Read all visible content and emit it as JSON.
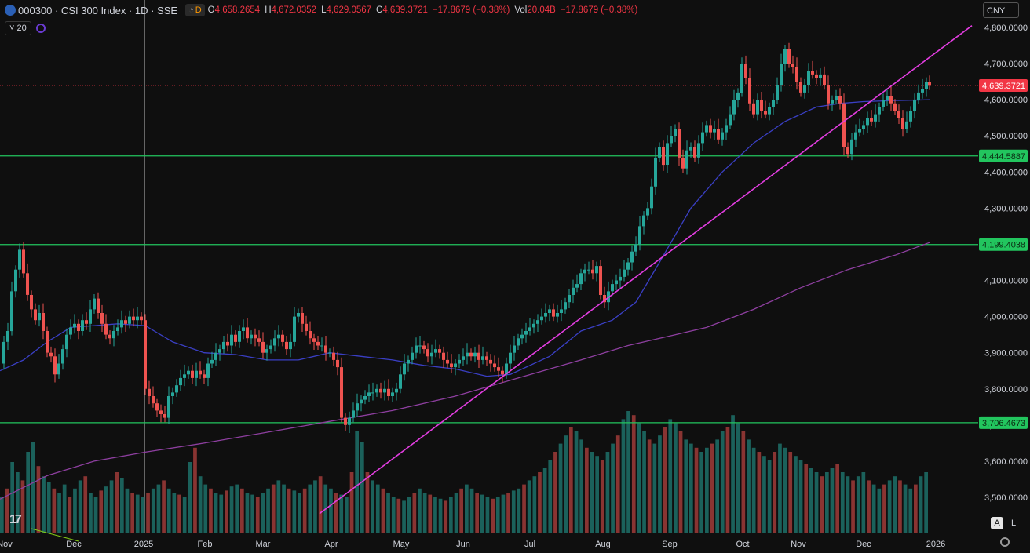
{
  "header": {
    "symbol": "000300",
    "title": "000300 · CSI 300 Index · 1D · SSE",
    "mode_badge": "D",
    "o_label": "O",
    "o_value": "4,658.2654",
    "h_label": "H",
    "h_value": "4,672.0352",
    "l_label": "L",
    "l_value": "4,629.0567",
    "c_label": "C",
    "c_value": "4,639.3721",
    "change": "−17.8679 (−0.38%)",
    "vol_label": "Vol",
    "vol_value": "20.04B",
    "vol_change": "−17.8679 (−0.38%)",
    "ma_length": "20",
    "currency": "CNY"
  },
  "scale_buttons": {
    "auto": "A",
    "log": "L"
  },
  "chart_data": {
    "type": "line",
    "ohlc_description": "daily candlestick price series with volume histogram",
    "y_axis_ticks": [
      "3,500.0000",
      "3,600.0000",
      "3,700.0000",
      "3,800.0000",
      "3,900.0000",
      "4,000.0000",
      "4,100.0000",
      "4,200.0000",
      "4,300.0000",
      "4,400.0000",
      "4,500.0000",
      "4,600.0000",
      "4,700.0000",
      "4,800.0000"
    ],
    "ylim": [
      3450,
      4830
    ],
    "x_axis_ticks": [
      "Nov",
      "Dec",
      "2025",
      "Feb",
      "Mar",
      "Apr",
      "May",
      "Jun",
      "Jul",
      "Aug",
      "Sep",
      "Oct",
      "Nov",
      "Dec",
      "2026"
    ],
    "horizontal_levels": [
      {
        "label": "4,444.5887",
        "value": 4444.5887,
        "color": "#22c55e"
      },
      {
        "label": "4,199.4038",
        "value": 4199.4038,
        "color": "#22c55e"
      },
      {
        "label": "3,706.4673",
        "value": 3706.4673,
        "color": "#22c55e"
      }
    ],
    "last_price": {
      "label": "4,639.3721",
      "value": 4639.3721,
      "color": "#f23645"
    },
    "price_path": [
      [
        0,
        3870
      ],
      [
        5,
        3930
      ],
      [
        10,
        3960
      ],
      [
        15,
        4070
      ],
      [
        20,
        4130
      ],
      [
        25,
        4185
      ],
      [
        30,
        4120
      ],
      [
        35,
        4060
      ],
      [
        40,
        4020
      ],
      [
        45,
        3990
      ],
      [
        50,
        4010
      ],
      [
        55,
        3960
      ],
      [
        60,
        3900
      ],
      [
        65,
        3890
      ],
      [
        70,
        3840
      ],
      [
        75,
        3870
      ],
      [
        80,
        3910
      ],
      [
        85,
        3950
      ],
      [
        90,
        3970
      ],
      [
        95,
        3980
      ],
      [
        100,
        3960
      ],
      [
        105,
        3990
      ],
      [
        110,
        3980
      ],
      [
        115,
        4020
      ],
      [
        120,
        4050
      ],
      [
        125,
        4010
      ],
      [
        130,
        3980
      ],
      [
        135,
        3950
      ],
      [
        140,
        3940
      ],
      [
        145,
        3960
      ],
      [
        150,
        3970
      ],
      [
        155,
        3990
      ],
      [
        160,
        3980
      ],
      [
        165,
        4000
      ],
      [
        170,
        3990
      ],
      [
        175,
        4000
      ],
      [
        180,
        3990
      ],
      [
        185,
        3800
      ],
      [
        190,
        3780
      ],
      [
        195,
        3760
      ],
      [
        200,
        3740
      ],
      [
        205,
        3730
      ],
      [
        210,
        3720
      ],
      [
        215,
        3780
      ],
      [
        220,
        3790
      ],
      [
        225,
        3810
      ],
      [
        230,
        3830
      ],
      [
        235,
        3840
      ],
      [
        240,
        3850
      ],
      [
        245,
        3830
      ],
      [
        250,
        3850
      ],
      [
        255,
        3840
      ],
      [
        260,
        3830
      ],
      [
        265,
        3870
      ],
      [
        270,
        3880
      ],
      [
        275,
        3900
      ],
      [
        280,
        3910
      ],
      [
        285,
        3930
      ],
      [
        290,
        3920
      ],
      [
        295,
        3950
      ],
      [
        300,
        3930
      ],
      [
        305,
        3960
      ],
      [
        310,
        3970
      ],
      [
        315,
        3940
      ],
      [
        320,
        3950
      ],
      [
        325,
        3940
      ],
      [
        330,
        3930
      ],
      [
        335,
        3900
      ],
      [
        340,
        3910
      ],
      [
        345,
        3920
      ],
      [
        350,
        3940
      ],
      [
        355,
        3950
      ],
      [
        360,
        3930
      ],
      [
        365,
        3910
      ],
      [
        370,
        3930
      ],
      [
        375,
        4000
      ],
      [
        380,
        4010
      ],
      [
        385,
        3980
      ],
      [
        390,
        3960
      ],
      [
        395,
        3940
      ],
      [
        400,
        3930
      ],
      [
        405,
        3920
      ],
      [
        410,
        3920
      ],
      [
        415,
        3900
      ],
      [
        420,
        3900
      ],
      [
        425,
        3880
      ],
      [
        430,
        3860
      ],
      [
        435,
        3720
      ],
      [
        440,
        3700
      ],
      [
        445,
        3720
      ],
      [
        450,
        3740
      ],
      [
        455,
        3760
      ],
      [
        460,
        3770
      ],
      [
        465,
        3780
      ],
      [
        470,
        3790
      ],
      [
        475,
        3790
      ],
      [
        480,
        3800
      ],
      [
        485,
        3790
      ],
      [
        490,
        3800
      ],
      [
        495,
        3780
      ],
      [
        500,
        3790
      ],
      [
        505,
        3800
      ],
      [
        510,
        3840
      ],
      [
        515,
        3870
      ],
      [
        520,
        3880
      ],
      [
        525,
        3900
      ],
      [
        530,
        3920
      ],
      [
        535,
        3920
      ],
      [
        540,
        3910
      ],
      [
        545,
        3890
      ],
      [
        550,
        3900
      ],
      [
        555,
        3910
      ],
      [
        560,
        3900
      ],
      [
        565,
        3880
      ],
      [
        570,
        3870
      ],
      [
        575,
        3860
      ],
      [
        580,
        3870
      ],
      [
        585,
        3880
      ],
      [
        590,
        3890
      ],
      [
        595,
        3900
      ],
      [
        600,
        3890
      ],
      [
        605,
        3900
      ],
      [
        610,
        3880
      ],
      [
        615,
        3890
      ],
      [
        620,
        3880
      ],
      [
        625,
        3870
      ],
      [
        630,
        3860
      ],
      [
        635,
        3850
      ],
      [
        640,
        3840
      ],
      [
        645,
        3870
      ],
      [
        650,
        3900
      ],
      [
        655,
        3920
      ],
      [
        660,
        3940
      ],
      [
        665,
        3950
      ],
      [
        670,
        3960
      ],
      [
        675,
        3970
      ],
      [
        680,
        3980
      ],
      [
        685,
        3990
      ],
      [
        690,
        4000
      ],
      [
        695,
        4010
      ],
      [
        700,
        4020
      ],
      [
        705,
        4000
      ],
      [
        710,
        4010
      ],
      [
        715,
        4020
      ],
      [
        720,
        4040
      ],
      [
        725,
        4060
      ],
      [
        730,
        4080
      ],
      [
        735,
        4090
      ],
      [
        740,
        4120
      ],
      [
        745,
        4130
      ],
      [
        750,
        4130
      ],
      [
        755,
        4120
      ],
      [
        760,
        4140
      ],
      [
        765,
        4060
      ],
      [
        770,
        4040
      ],
      [
        775,
        4070
      ],
      [
        780,
        4090
      ],
      [
        785,
        4100
      ],
      [
        790,
        4110
      ],
      [
        795,
        4130
      ],
      [
        800,
        4150
      ],
      [
        805,
        4180
      ],
      [
        810,
        4200
      ],
      [
        815,
        4250
      ],
      [
        820,
        4280
      ],
      [
        825,
        4300
      ],
      [
        830,
        4360
      ],
      [
        835,
        4440
      ],
      [
        840,
        4470
      ],
      [
        845,
        4420
      ],
      [
        850,
        4480
      ],
      [
        855,
        4500
      ],
      [
        860,
        4520
      ],
      [
        865,
        4440
      ],
      [
        870,
        4410
      ],
      [
        875,
        4460
      ],
      [
        880,
        4470
      ],
      [
        885,
        4440
      ],
      [
        890,
        4480
      ],
      [
        895,
        4510
      ],
      [
        900,
        4530
      ],
      [
        905,
        4510
      ],
      [
        910,
        4520
      ],
      [
        915,
        4490
      ],
      [
        920,
        4510
      ],
      [
        925,
        4530
      ],
      [
        930,
        4560
      ],
      [
        935,
        4600
      ],
      [
        940,
        4620
      ],
      [
        945,
        4700
      ],
      [
        950,
        4660
      ],
      [
        955,
        4590
      ],
      [
        960,
        4560
      ],
      [
        965,
        4600
      ],
      [
        970,
        4570
      ],
      [
        975,
        4560
      ],
      [
        980,
        4580
      ],
      [
        985,
        4600
      ],
      [
        990,
        4640
      ],
      [
        995,
        4700
      ],
      [
        1000,
        4740
      ],
      [
        1005,
        4700
      ],
      [
        1010,
        4690
      ],
      [
        1015,
        4650
      ],
      [
        1020,
        4620
      ],
      [
        1025,
        4640
      ],
      [
        1030,
        4680
      ],
      [
        1035,
        4670
      ],
      [
        1040,
        4660
      ],
      [
        1045,
        4670
      ],
      [
        1050,
        4640
      ],
      [
        1055,
        4590
      ],
      [
        1060,
        4600
      ],
      [
        1065,
        4610
      ],
      [
        1070,
        4590
      ],
      [
        1075,
        4470
      ],
      [
        1080,
        4450
      ],
      [
        1085,
        4490
      ],
      [
        1090,
        4510
      ],
      [
        1095,
        4520
      ],
      [
        1100,
        4530
      ],
      [
        1105,
        4550
      ],
      [
        1110,
        4540
      ],
      [
        1115,
        4560
      ],
      [
        1120,
        4580
      ],
      [
        1125,
        4600
      ],
      [
        1130,
        4610
      ],
      [
        1135,
        4590
      ],
      [
        1140,
        4570
      ],
      [
        1145,
        4550
      ],
      [
        1150,
        4520
      ],
      [
        1155,
        4540
      ],
      [
        1160,
        4570
      ],
      [
        1165,
        4600
      ],
      [
        1170,
        4620
      ],
      [
        1175,
        4630
      ],
      [
        1180,
        4650
      ],
      [
        1184,
        4639
      ]
    ],
    "ma_blue": [
      [
        0,
        3850
      ],
      [
        30,
        3880
      ],
      [
        60,
        3930
      ],
      [
        90,
        3970
      ],
      [
        120,
        3975
      ],
      [
        150,
        3980
      ],
      [
        185,
        3975
      ],
      [
        220,
        3930
      ],
      [
        260,
        3900
      ],
      [
        300,
        3895
      ],
      [
        340,
        3880
      ],
      [
        380,
        3880
      ],
      [
        420,
        3900
      ],
      [
        460,
        3890
      ],
      [
        500,
        3880
      ],
      [
        540,
        3865
      ],
      [
        580,
        3855
      ],
      [
        620,
        3835
      ],
      [
        650,
        3840
      ],
      [
        700,
        3890
      ],
      [
        740,
        3960
      ],
      [
        780,
        3990
      ],
      [
        810,
        4040
      ],
      [
        840,
        4150
      ],
      [
        880,
        4300
      ],
      [
        920,
        4400
      ],
      [
        960,
        4480
      ],
      [
        1000,
        4540
      ],
      [
        1040,
        4580
      ],
      [
        1070,
        4590
      ],
      [
        1100,
        4595
      ],
      [
        1140,
        4598
      ],
      [
        1184,
        4600
      ]
    ],
    "ma_purple": [
      [
        0,
        3495
      ],
      [
        60,
        3560
      ],
      [
        120,
        3600
      ],
      [
        185,
        3625
      ],
      [
        260,
        3650
      ],
      [
        340,
        3680
      ],
      [
        420,
        3710
      ],
      [
        500,
        3740
      ],
      [
        580,
        3780
      ],
      [
        660,
        3830
      ],
      [
        740,
        3880
      ],
      [
        800,
        3920
      ],
      [
        860,
        3950
      ],
      [
        900,
        3970
      ],
      [
        960,
        4020
      ],
      [
        1020,
        4080
      ],
      [
        1080,
        4130
      ],
      [
        1140,
        4170
      ],
      [
        1184,
        4205
      ]
    ],
    "trendline": [
      [
        407,
        3455
      ],
      [
        1238,
        4805
      ]
    ],
    "volume_heights": [
      0.18,
      0.22,
      0.35,
      0.3,
      0.26,
      0.4,
      0.45,
      0.33,
      0.28,
      0.25,
      0.22,
      0.2,
      0.24,
      0.18,
      0.22,
      0.26,
      0.28,
      0.2,
      0.18,
      0.21,
      0.23,
      0.26,
      0.3,
      0.27,
      0.22,
      0.2,
      0.19,
      0.18,
      0.2,
      0.22,
      0.24,
      0.26,
      0.22,
      0.2,
      0.19,
      0.18,
      0.35,
      0.42,
      0.28,
      0.24,
      0.22,
      0.2,
      0.19,
      0.21,
      0.23,
      0.24,
      0.22,
      0.2,
      0.19,
      0.18,
      0.2,
      0.22,
      0.24,
      0.26,
      0.24,
      0.22,
      0.21,
      0.2,
      0.22,
      0.24,
      0.26,
      0.28,
      0.24,
      0.22,
      0.2,
      0.19,
      0.18,
      0.3,
      0.5,
      0.45,
      0.3,
      0.26,
      0.24,
      0.22,
      0.2,
      0.18,
      0.17,
      0.16,
      0.18,
      0.2,
      0.22,
      0.2,
      0.19,
      0.18,
      0.17,
      0.16,
      0.18,
      0.2,
      0.22,
      0.24,
      0.22,
      0.2,
      0.19,
      0.18,
      0.17,
      0.18,
      0.19,
      0.2,
      0.21,
      0.22,
      0.24,
      0.26,
      0.28,
      0.3,
      0.32,
      0.36,
      0.4,
      0.44,
      0.48,
      0.52,
      0.5,
      0.46,
      0.42,
      0.4,
      0.38,
      0.36,
      0.4,
      0.44,
      0.48,
      0.56,
      0.6,
      0.58,
      0.54,
      0.5,
      0.46,
      0.44,
      0.48,
      0.52,
      0.56,
      0.54,
      0.5,
      0.46,
      0.44,
      0.42,
      0.4,
      0.42,
      0.44,
      0.46,
      0.5,
      0.52,
      0.58,
      0.54,
      0.5,
      0.46,
      0.42,
      0.4,
      0.38,
      0.36,
      0.4,
      0.44,
      0.42,
      0.4,
      0.38,
      0.36,
      0.34,
      0.32,
      0.3,
      0.28,
      0.3,
      0.32,
      0.34,
      0.3,
      0.28,
      0.26,
      0.28,
      0.3,
      0.26,
      0.24,
      0.22,
      0.24,
      0.26,
      0.28,
      0.26,
      0.24,
      0.22,
      0.24,
      0.28,
      0.3
    ]
  }
}
